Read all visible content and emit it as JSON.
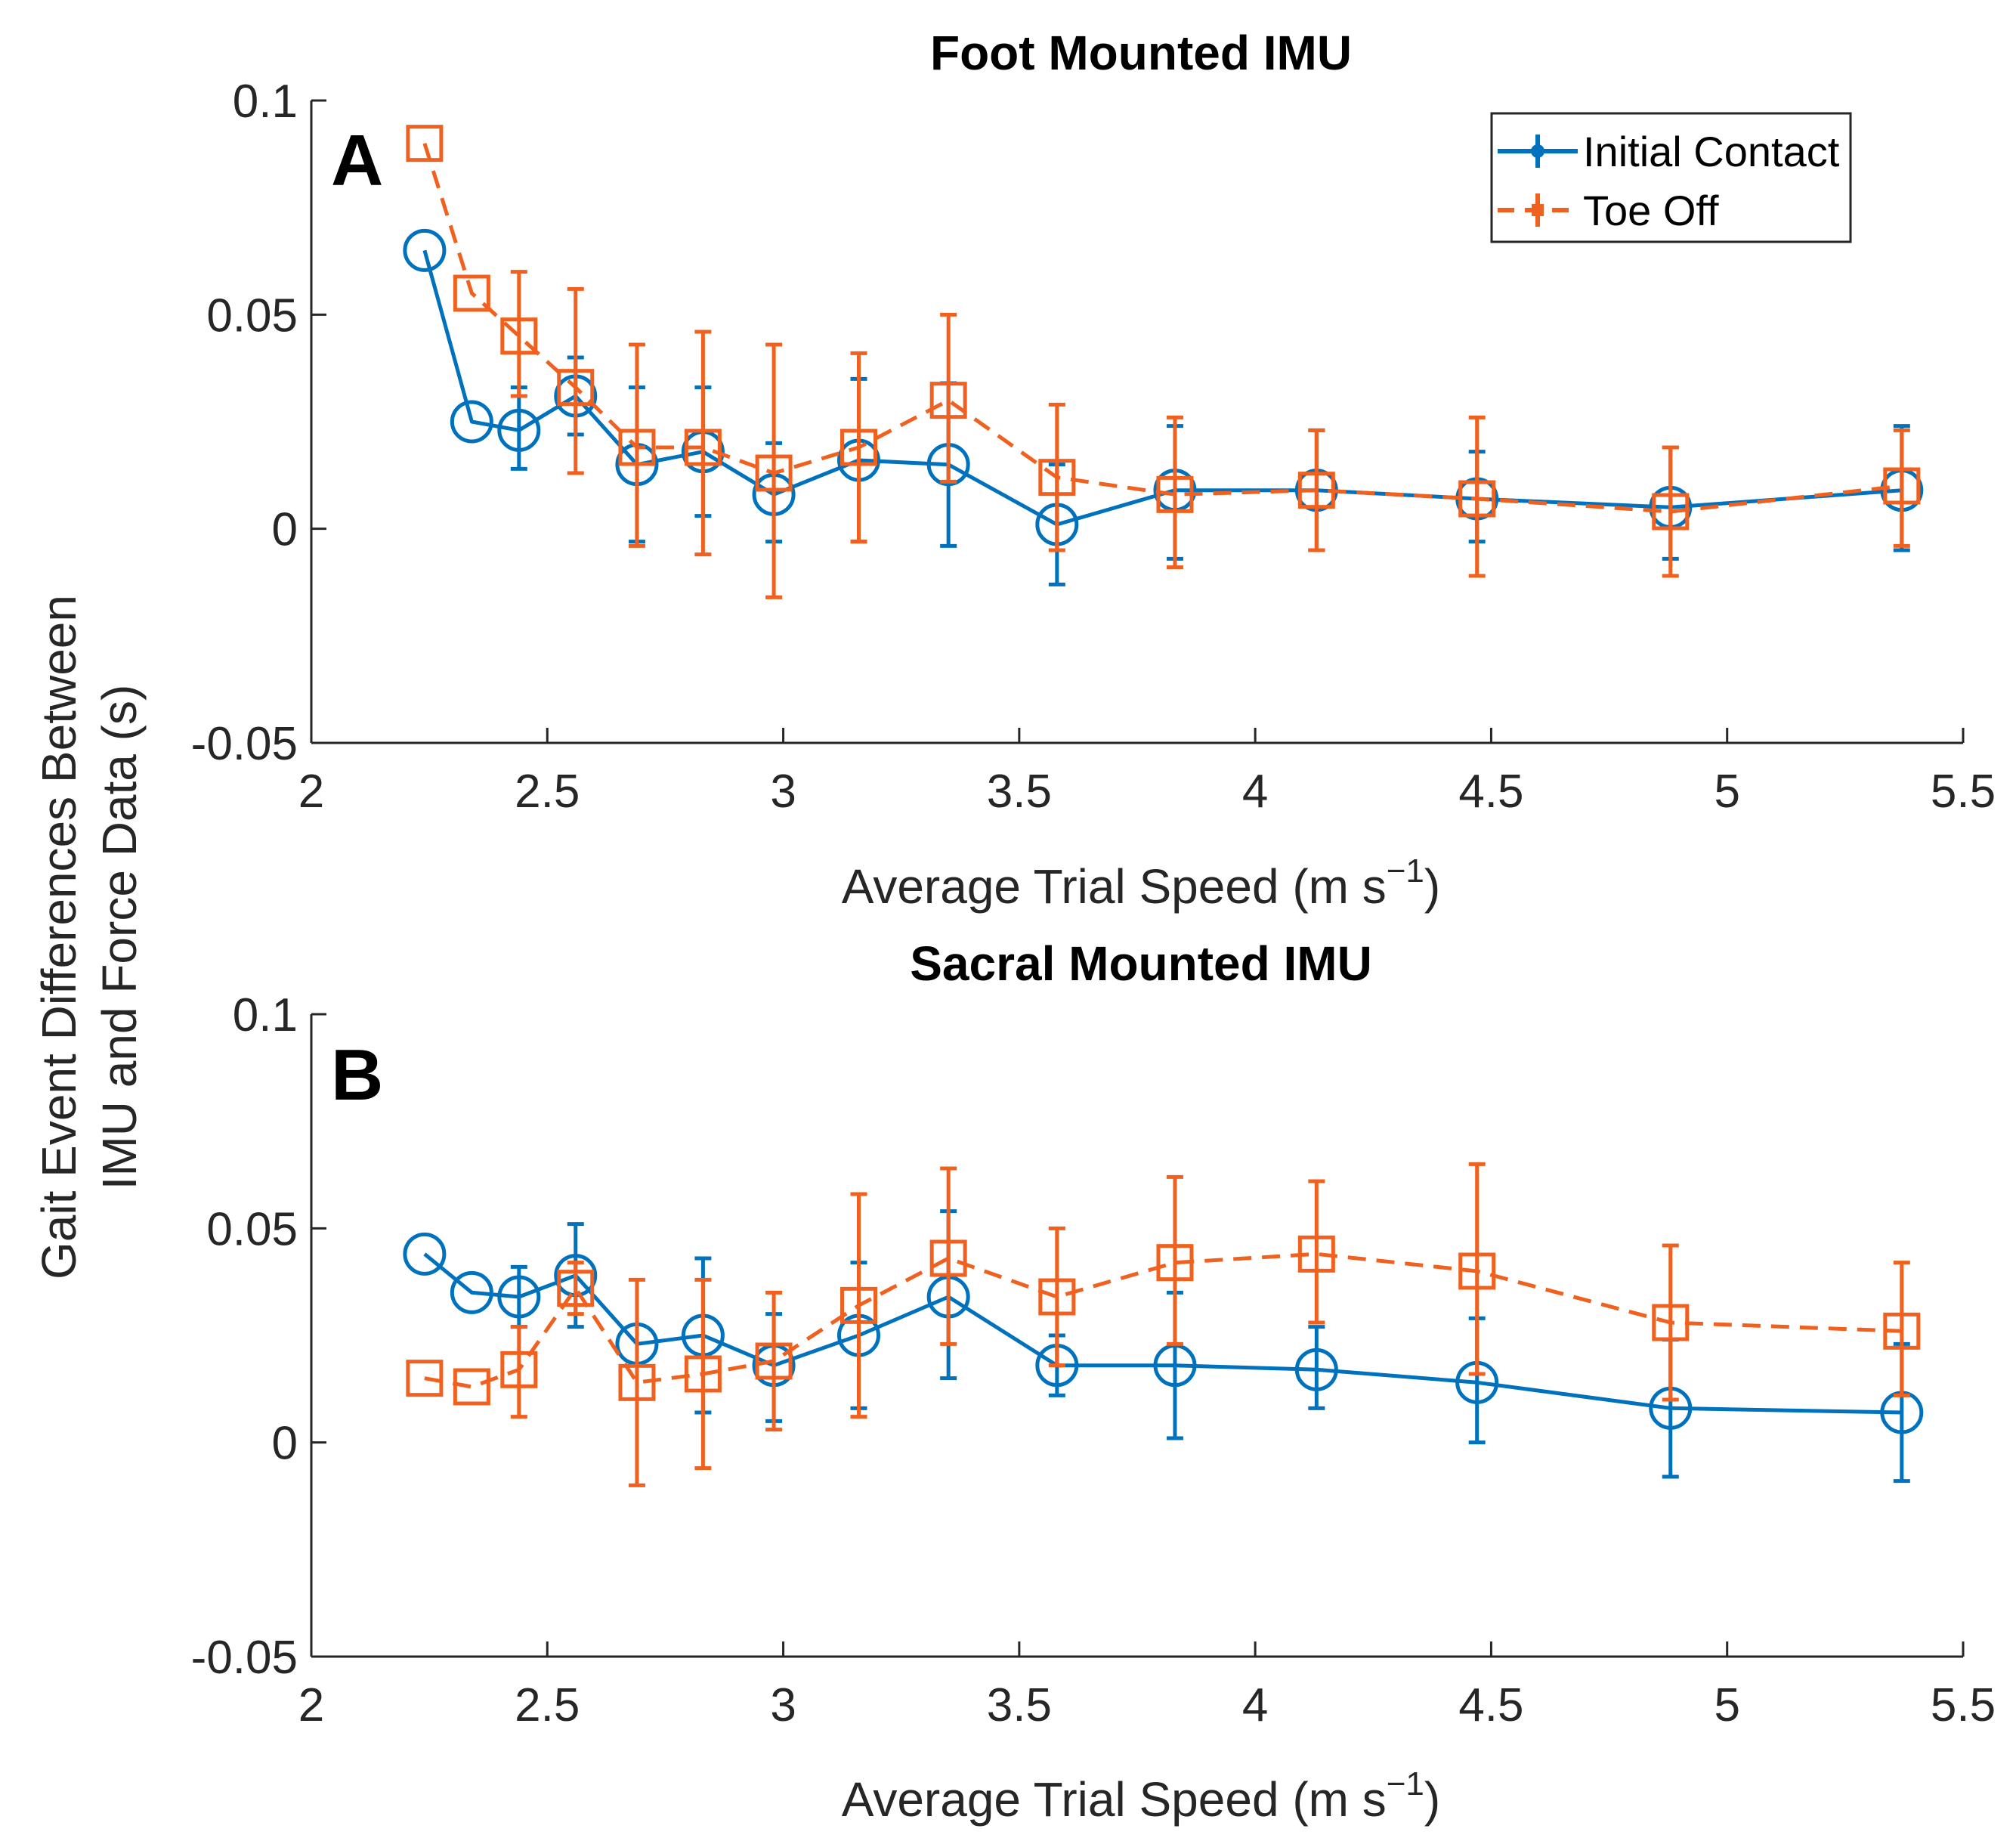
{
  "figure": {
    "ylabel_line1": "Gait Event Differences Between",
    "ylabel_line2": "IMU and Force Data (s)"
  },
  "legend": {
    "initial_contact": "Initial Contact",
    "toe_off": "Toe Off"
  },
  "colors": {
    "initial_contact": "#0072BD",
    "toe_off": "#F0601E",
    "axis": "#262626"
  },
  "chart_data": [
    {
      "type": "line",
      "panel": "A",
      "title": "Foot Mounted IMU",
      "xlabel_main": "Average Trial Speed (m s",
      "xlabel_sup": "−1",
      "xlabel_close": ")",
      "xlim": [
        2,
        5.5
      ],
      "ylim": [
        -0.05,
        0.1
      ],
      "xticks": [
        2,
        2.5,
        3,
        3.5,
        4,
        4.5,
        5,
        5.5
      ],
      "xtick_labels": [
        "2",
        "2.5",
        "3",
        "3.5",
        "4",
        "4.5",
        "5",
        "5.5"
      ],
      "yticks": [
        -0.05,
        0,
        0.05,
        0.1
      ],
      "ytick_labels": [
        "-0.05",
        "0",
        "0.05",
        "0.1"
      ],
      "legend_position": "top-right",
      "series": [
        {
          "name": "Initial Contact",
          "marker": "circle",
          "line": "solid",
          "x": [
            2.24,
            2.34,
            2.44,
            2.56,
            2.69,
            2.83,
            2.98,
            3.16,
            3.35,
            3.58,
            3.83,
            4.13,
            4.47,
            4.88,
            5.37
          ],
          "y": [
            0.065,
            0.025,
            0.023,
            0.031,
            0.015,
            0.018,
            0.008,
            0.016,
            0.015,
            0.001,
            0.009,
            0.009,
            0.007,
            0.005,
            0.009
          ],
          "err_low": [
            null,
            null,
            0.014,
            0.022,
            -0.003,
            0.003,
            -0.003,
            -0.003,
            -0.004,
            -0.013,
            -0.007,
            -0.005,
            -0.003,
            -0.007,
            -0.005
          ],
          "err_high": [
            null,
            null,
            0.033,
            0.04,
            0.033,
            0.033,
            0.02,
            0.035,
            0.034,
            0.015,
            0.024,
            0.023,
            0.018,
            0.019,
            0.024
          ]
        },
        {
          "name": "Toe Off",
          "marker": "square",
          "line": "dashed",
          "x": [
            2.24,
            2.34,
            2.44,
            2.56,
            2.69,
            2.83,
            2.98,
            3.16,
            3.35,
            3.58,
            3.83,
            4.13,
            4.47,
            4.88,
            5.37
          ],
          "y": [
            0.09,
            0.055,
            0.045,
            0.033,
            0.019,
            0.019,
            0.013,
            0.019,
            0.03,
            0.012,
            0.008,
            0.009,
            0.007,
            0.004,
            0.01
          ],
          "err_low": [
            null,
            null,
            0.031,
            0.013,
            -0.004,
            -0.006,
            -0.016,
            -0.003,
            0.011,
            -0.005,
            -0.009,
            -0.005,
            -0.011,
            -0.011,
            -0.004
          ],
          "err_high": [
            null,
            null,
            0.06,
            0.056,
            0.043,
            0.046,
            0.043,
            0.041,
            0.05,
            0.029,
            0.026,
            0.023,
            0.026,
            0.019,
            0.023
          ]
        }
      ]
    },
    {
      "type": "line",
      "panel": "B",
      "title": "Sacral Mounted IMU",
      "xlabel_main": "Average Trial Speed (m s",
      "xlabel_sup": "−1",
      "xlabel_close": ")",
      "xlim": [
        2,
        5.5
      ],
      "ylim": [
        -0.05,
        0.1
      ],
      "xticks": [
        2,
        2.5,
        3,
        3.5,
        4,
        4.5,
        5,
        5.5
      ],
      "xtick_labels": [
        "2",
        "2.5",
        "3",
        "3.5",
        "4",
        "4.5",
        "5",
        "5.5"
      ],
      "yticks": [
        -0.05,
        0,
        0.05,
        0.1
      ],
      "ytick_labels": [
        "-0.05",
        "0",
        "0.05",
        "0.1"
      ],
      "series": [
        {
          "name": "Initial Contact",
          "marker": "circle",
          "line": "solid",
          "x": [
            2.24,
            2.34,
            2.44,
            2.56,
            2.69,
            2.83,
            2.98,
            3.16,
            3.35,
            3.58,
            3.83,
            4.13,
            4.47,
            4.88,
            5.37
          ],
          "y": [
            0.044,
            0.035,
            0.034,
            0.039,
            0.023,
            0.025,
            0.018,
            0.025,
            0.034,
            0.018,
            0.018,
            0.017,
            0.014,
            0.008,
            0.007
          ],
          "err_low": [
            null,
            null,
            0.027,
            0.027,
            null,
            0.007,
            0.005,
            0.008,
            0.015,
            0.011,
            0.001,
            0.008,
            0.0,
            -0.008,
            -0.009
          ],
          "err_high": [
            null,
            null,
            0.041,
            0.051,
            null,
            0.043,
            0.03,
            0.042,
            0.054,
            0.025,
            0.035,
            0.027,
            0.029,
            0.024,
            0.023
          ]
        },
        {
          "name": "Toe Off",
          "marker": "square",
          "line": "dashed",
          "x": [
            2.24,
            2.34,
            2.44,
            2.56,
            2.69,
            2.83,
            2.98,
            3.16,
            3.35,
            3.58,
            3.83,
            4.13,
            4.47,
            4.88,
            5.37
          ],
          "y": [
            0.015,
            0.013,
            0.017,
            0.036,
            0.014,
            0.016,
            0.019,
            0.032,
            0.043,
            0.034,
            0.042,
            0.044,
            0.04,
            0.028,
            0.026
          ],
          "err_low": [
            null,
            null,
            0.006,
            0.03,
            -0.01,
            -0.006,
            0.003,
            0.006,
            0.023,
            0.018,
            0.023,
            0.028,
            0.016,
            0.01,
            0.011
          ],
          "err_high": [
            null,
            null,
            0.027,
            0.042,
            0.038,
            0.038,
            0.035,
            0.058,
            0.064,
            0.05,
            0.062,
            0.061,
            0.065,
            0.046,
            0.042
          ]
        }
      ]
    }
  ]
}
